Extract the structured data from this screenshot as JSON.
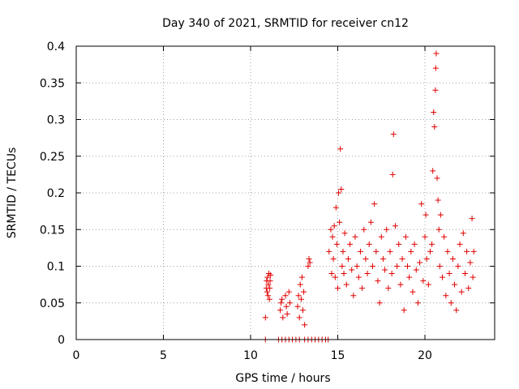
{
  "chart_data": {
    "type": "scatter",
    "title": "Day 340 of 2021, SRMTID for receiver cn12",
    "xlabel": "GPS time / hours",
    "ylabel": "SRMTID / TECUs",
    "xlim": [
      0,
      24
    ],
    "ylim": [
      0,
      0.4
    ],
    "xticks": [
      0,
      5,
      10,
      15,
      20
    ],
    "xtick_labels": [
      "0",
      "5",
      "10",
      "15",
      "20"
    ],
    "yticks": [
      0,
      0.05,
      0.1,
      0.15,
      0.2,
      0.25,
      0.3,
      0.35,
      0.4
    ],
    "ytick_labels": [
      "0",
      "0.05",
      "0.1",
      "0.15",
      "0.2",
      "0.25",
      "0.3",
      "0.35",
      "0.4"
    ],
    "grid": true,
    "marker": "plus",
    "series": [
      {
        "name": "SRMTID",
        "color": "#e00000",
        "points": [
          [
            10.85,
            0.03
          ],
          [
            10.9,
            0.07
          ],
          [
            10.92,
            0.08
          ],
          [
            10.95,
            0.065
          ],
          [
            10.97,
            0.085
          ],
          [
            11.0,
            0.06
          ],
          [
            11.02,
            0.075
          ],
          [
            11.05,
            0.09
          ],
          [
            11.08,
            0.055
          ],
          [
            11.1,
            0.07
          ],
          [
            11.12,
            0.08
          ],
          [
            11.15,
            0.088
          ],
          [
            11.7,
            0.04
          ],
          [
            11.75,
            0.05
          ],
          [
            11.8,
            0.055
          ],
          [
            11.85,
            0.03
          ],
          [
            12.0,
            0.06
          ],
          [
            12.05,
            0.045
          ],
          [
            12.1,
            0.035
          ],
          [
            12.2,
            0.065
          ],
          [
            12.25,
            0.05
          ],
          [
            12.7,
            0.045
          ],
          [
            12.75,
            0.06
          ],
          [
            12.8,
            0.03
          ],
          [
            12.85,
            0.075
          ],
          [
            12.9,
            0.055
          ],
          [
            12.95,
            0.085
          ],
          [
            13.0,
            0.04
          ],
          [
            13.05,
            0.065
          ],
          [
            13.1,
            0.02
          ],
          [
            13.3,
            0.1
          ],
          [
            13.35,
            0.11
          ],
          [
            13.4,
            0.105
          ],
          [
            14.5,
            0.12
          ],
          [
            14.6,
            0.15
          ],
          [
            14.65,
            0.09
          ],
          [
            14.7,
            0.14
          ],
          [
            14.75,
            0.11
          ],
          [
            14.8,
            0.155
          ],
          [
            14.85,
            0.085
          ],
          [
            14.9,
            0.18
          ],
          [
            14.95,
            0.13
          ],
          [
            15.0,
            0.07
          ],
          [
            15.05,
            0.2
          ],
          [
            15.1,
            0.16
          ],
          [
            15.15,
            0.26
          ],
          [
            15.2,
            0.205
          ],
          [
            15.25,
            0.1
          ],
          [
            15.3,
            0.12
          ],
          [
            15.35,
            0.09
          ],
          [
            15.4,
            0.145
          ],
          [
            15.5,
            0.075
          ],
          [
            15.6,
            0.11
          ],
          [
            15.7,
            0.13
          ],
          [
            15.8,
            0.095
          ],
          [
            15.9,
            0.06
          ],
          [
            16.0,
            0.14
          ],
          [
            16.1,
            0.1
          ],
          [
            16.2,
            0.085
          ],
          [
            16.3,
            0.12
          ],
          [
            16.4,
            0.07
          ],
          [
            16.5,
            0.15
          ],
          [
            16.6,
            0.11
          ],
          [
            16.7,
            0.09
          ],
          [
            16.8,
            0.13
          ],
          [
            16.9,
            0.16
          ],
          [
            17.0,
            0.1
          ],
          [
            17.1,
            0.185
          ],
          [
            17.2,
            0.12
          ],
          [
            17.3,
            0.08
          ],
          [
            17.4,
            0.05
          ],
          [
            17.5,
            0.14
          ],
          [
            17.6,
            0.11
          ],
          [
            17.7,
            0.095
          ],
          [
            17.8,
            0.15
          ],
          [
            17.9,
            0.07
          ],
          [
            18.0,
            0.12
          ],
          [
            18.1,
            0.09
          ],
          [
            18.15,
            0.225
          ],
          [
            18.2,
            0.28
          ],
          [
            18.3,
            0.155
          ],
          [
            18.4,
            0.1
          ],
          [
            18.5,
            0.13
          ],
          [
            18.6,
            0.075
          ],
          [
            18.7,
            0.11
          ],
          [
            18.8,
            0.04
          ],
          [
            18.9,
            0.14
          ],
          [
            19.0,
            0.1
          ],
          [
            19.1,
            0.085
          ],
          [
            19.2,
            0.12
          ],
          [
            19.3,
            0.065
          ],
          [
            19.4,
            0.13
          ],
          [
            19.5,
            0.095
          ],
          [
            19.6,
            0.05
          ],
          [
            19.7,
            0.105
          ],
          [
            19.8,
            0.185
          ],
          [
            19.9,
            0.08
          ],
          [
            20.0,
            0.14
          ],
          [
            20.05,
            0.17
          ],
          [
            20.1,
            0.11
          ],
          [
            20.2,
            0.075
          ],
          [
            20.3,
            0.12
          ],
          [
            20.4,
            0.13
          ],
          [
            20.45,
            0.23
          ],
          [
            20.5,
            0.31
          ],
          [
            20.55,
            0.29
          ],
          [
            20.6,
            0.34
          ],
          [
            20.62,
            0.37
          ],
          [
            20.65,
            0.39
          ],
          [
            20.7,
            0.22
          ],
          [
            20.75,
            0.19
          ],
          [
            20.8,
            0.15
          ],
          [
            20.85,
            0.1
          ],
          [
            20.9,
            0.17
          ],
          [
            21.0,
            0.085
          ],
          [
            21.1,
            0.14
          ],
          [
            21.2,
            0.06
          ],
          [
            21.3,
            0.12
          ],
          [
            21.4,
            0.09
          ],
          [
            21.5,
            0.05
          ],
          [
            21.6,
            0.11
          ],
          [
            21.7,
            0.075
          ],
          [
            21.8,
            0.04
          ],
          [
            21.9,
            0.1
          ],
          [
            22.0,
            0.13
          ],
          [
            22.1,
            0.065
          ],
          [
            22.2,
            0.145
          ],
          [
            22.3,
            0.09
          ],
          [
            22.4,
            0.12
          ],
          [
            22.5,
            0.07
          ],
          [
            22.6,
            0.105
          ],
          [
            22.7,
            0.165
          ],
          [
            22.75,
            0.085
          ],
          [
            22.8,
            0.12
          ],
          [
            10.85,
            0.0
          ],
          [
            11.6,
            0.0
          ],
          [
            11.8,
            0.0
          ],
          [
            12.0,
            0.0
          ],
          [
            12.2,
            0.0
          ],
          [
            12.4,
            0.0
          ],
          [
            12.6,
            0.0
          ],
          [
            12.8,
            0.0
          ],
          [
            13.1,
            0.0
          ],
          [
            13.3,
            0.0
          ],
          [
            13.5,
            0.0
          ],
          [
            13.7,
            0.0
          ],
          [
            13.9,
            0.0
          ],
          [
            14.1,
            0.0
          ],
          [
            14.3,
            0.0
          ],
          [
            14.45,
            0.0
          ]
        ]
      }
    ]
  }
}
